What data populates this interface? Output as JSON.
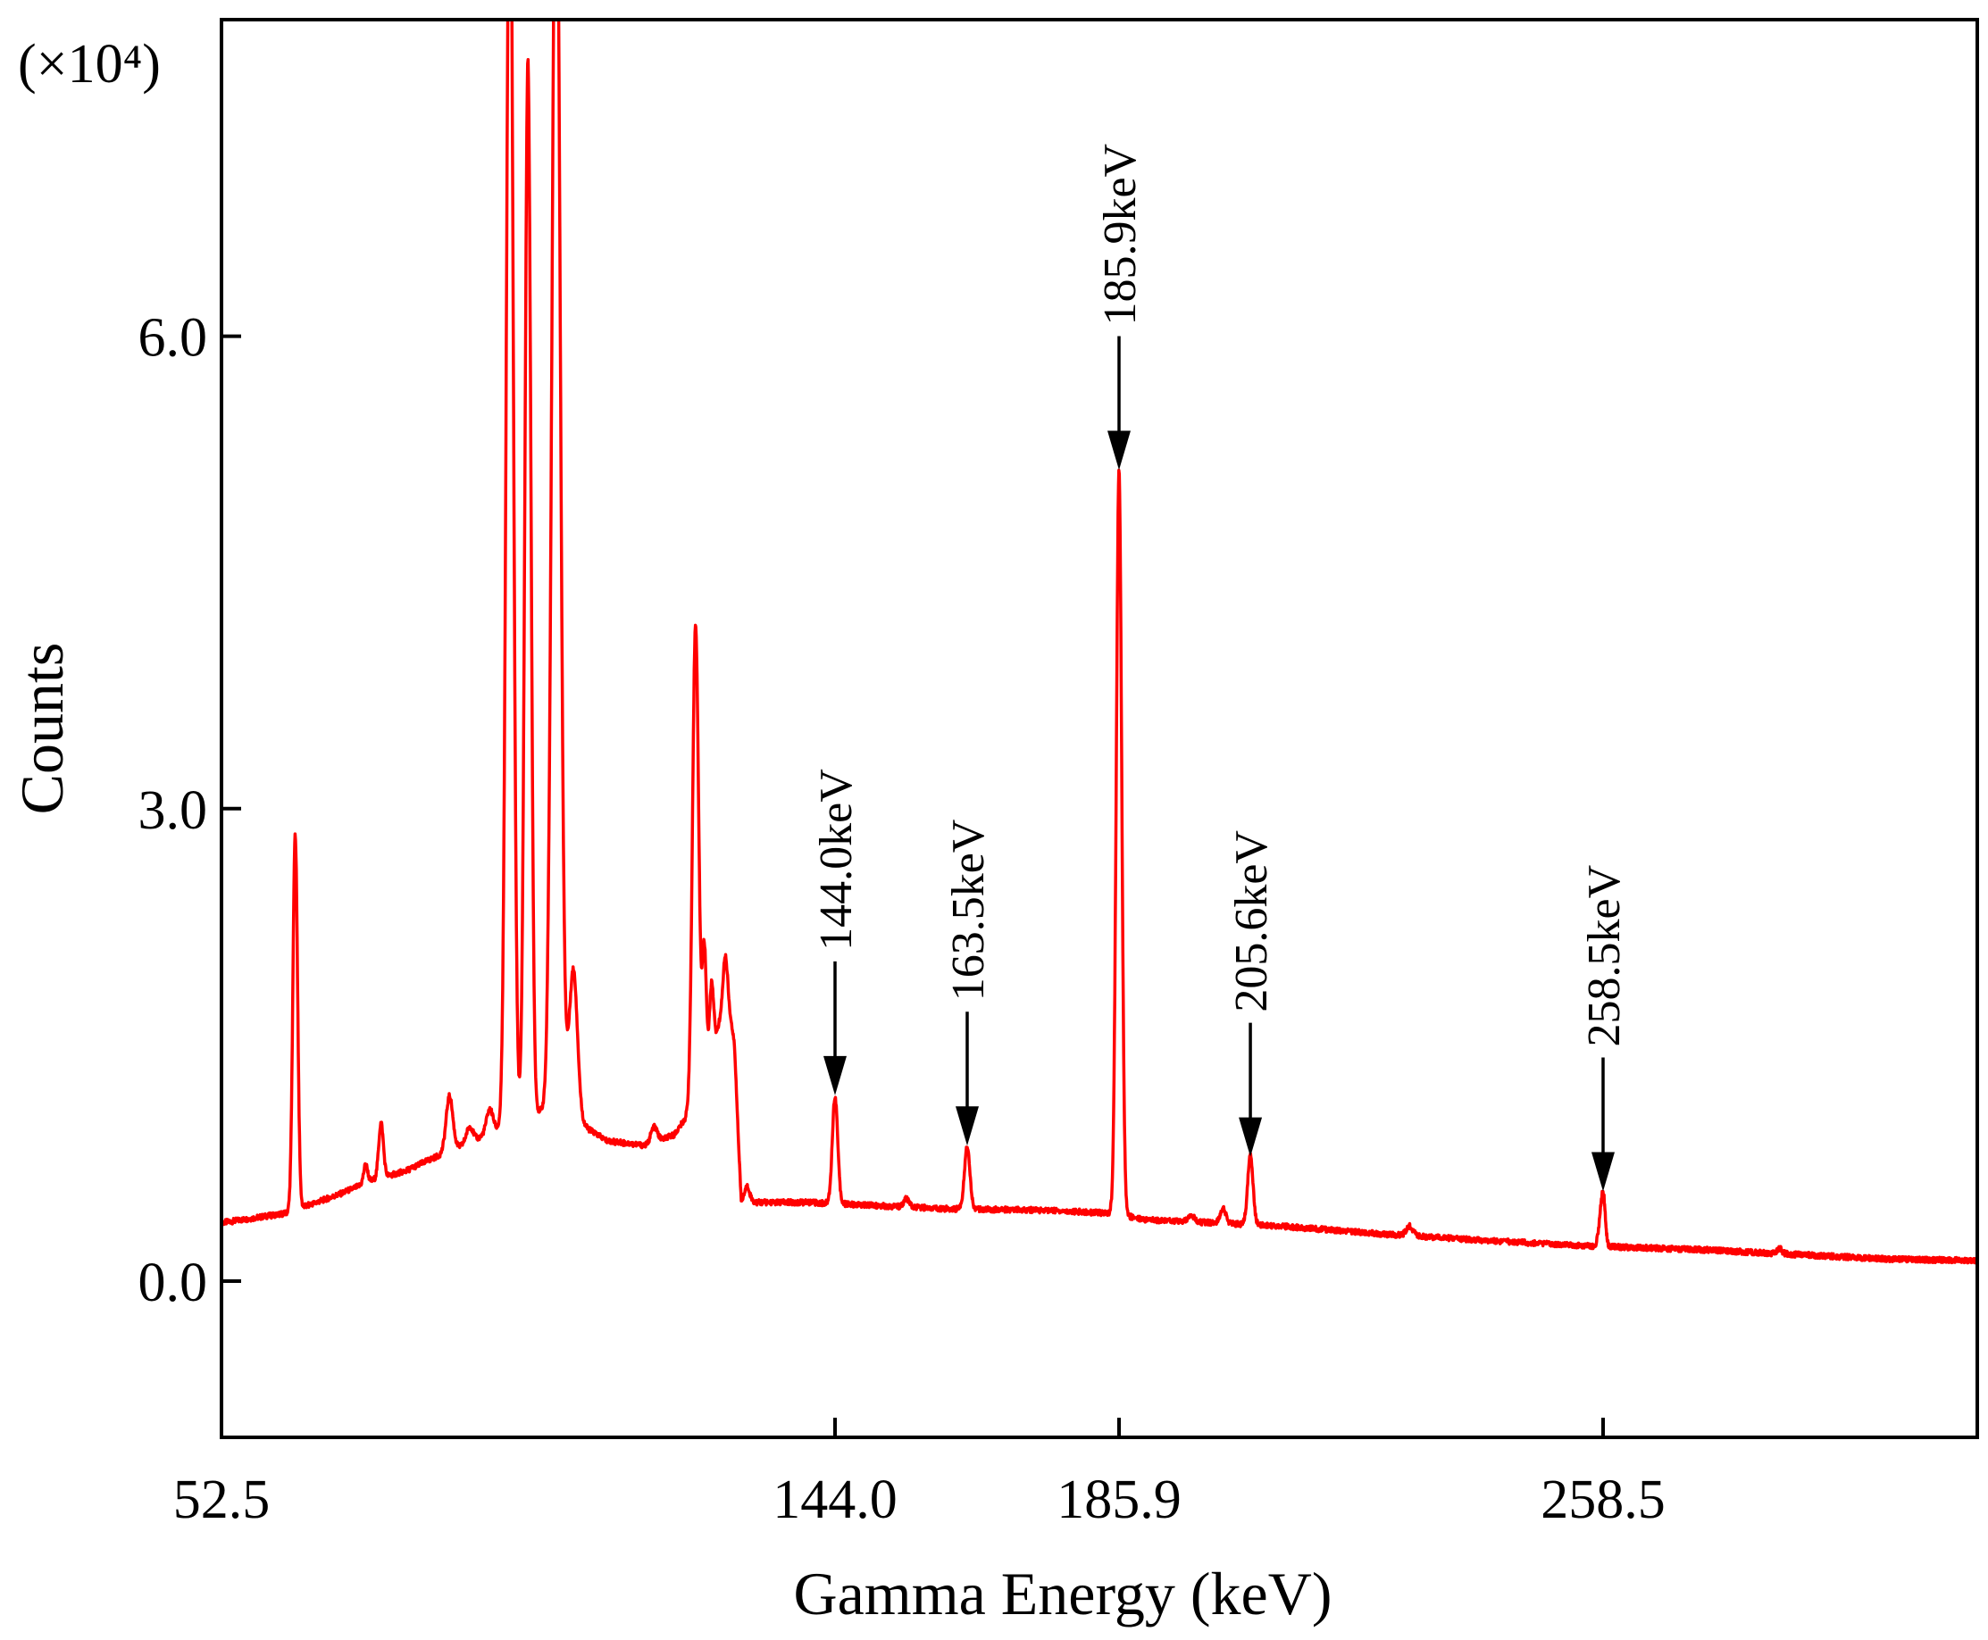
{
  "chart_data": {
    "type": "line",
    "title": "",
    "xlabel": "Gamma Energy (keV)",
    "ylabel": "Counts",
    "y_scale_label": "(×10⁴)",
    "xlim": [
      52.5,
      340
    ],
    "ylim": [
      -0.9,
      8.0
    ],
    "x_ticks": [
      52.5,
      144.0,
      185.9,
      258.5
    ],
    "x_tick_labels": [
      "52.5",
      "144.0",
      "185.9",
      "258.5"
    ],
    "y_ticks": [
      0.0,
      3.0,
      6.0
    ],
    "y_tick_labels": [
      "0.0",
      "3.0",
      "6.0"
    ],
    "grid": false,
    "legend": "none",
    "annotations": [
      {
        "label": "144.0keV",
        "x": 144.0,
        "y": 1.18
      },
      {
        "label": "163.5keV",
        "x": 163.5,
        "y": 0.86
      },
      {
        "label": "185.9keV",
        "x": 185.9,
        "y": 5.15
      },
      {
        "label": "205.6keV",
        "x": 205.6,
        "y": 0.79
      },
      {
        "label": "258.5keV",
        "x": 258.5,
        "y": 0.57
      }
    ],
    "series": [
      {
        "color": "#ff0000",
        "baseline": [
          [
            52.5,
            0.37
          ],
          [
            62,
            0.43
          ],
          [
            64,
            0.46
          ],
          [
            70,
            0.55
          ],
          [
            75,
            0.64
          ],
          [
            80,
            0.7
          ],
          [
            84,
            0.78
          ],
          [
            89,
            0.87
          ],
          [
            94,
            0.97
          ],
          [
            99,
            1.06
          ],
          [
            102,
            1.12
          ],
          [
            104,
            1.16
          ],
          [
            106,
            1.0
          ],
          [
            110,
            0.89
          ],
          [
            116,
            0.86
          ],
          [
            120,
            0.93
          ],
          [
            122,
            1.05
          ],
          [
            124,
            1.25
          ],
          [
            126,
            1.5
          ],
          [
            127,
            1.7
          ],
          [
            128,
            1.8
          ],
          [
            129,
            1.5
          ],
          [
            130,
            0.5
          ],
          [
            140,
            0.5
          ],
          [
            160,
            0.46
          ],
          [
            175,
            0.45
          ],
          [
            185,
            0.43
          ],
          [
            190,
            0.39
          ],
          [
            200,
            0.37
          ],
          [
            210,
            0.35
          ],
          [
            225,
            0.3
          ],
          [
            240,
            0.26
          ],
          [
            258,
            0.22
          ],
          [
            280,
            0.2
          ],
          [
            300,
            0.17
          ],
          [
            320,
            0.14
          ],
          [
            340,
            0.13
          ]
        ],
        "peaks": [
          {
            "x": 63.5,
            "height": 2.38,
            "width": 0.35
          },
          {
            "x": 74.0,
            "height": 0.12,
            "width": 0.3
          },
          {
            "x": 76.3,
            "height": 0.35,
            "width": 0.35
          },
          {
            "x": 86.5,
            "height": 0.35,
            "width": 0.5
          },
          {
            "x": 89.5,
            "height": 0.1,
            "width": 0.5
          },
          {
            "x": 92.5,
            "height": 0.15,
            "width": 0.5
          },
          {
            "x": 95.5,
            "height": 8.5,
            "width": 0.5
          },
          {
            "x": 98.2,
            "height": 6.7,
            "width": 0.45
          },
          {
            "x": 102.4,
            "height": 8.5,
            "width": 0.6
          },
          {
            "x": 105.0,
            "height": 0.9,
            "width": 0.6
          },
          {
            "x": 117.0,
            "height": 0.1,
            "width": 0.5
          },
          {
            "x": 123.2,
            "height": 3.0,
            "width": 0.45
          },
          {
            "x": 124.5,
            "height": 0.8,
            "width": 0.3
          },
          {
            "x": 125.6,
            "height": 0.45,
            "width": 0.3
          },
          {
            "x": 127.6,
            "height": 0.3,
            "width": 0.3
          },
          {
            "x": 130.9,
            "height": 0.1,
            "width": 0.4
          },
          {
            "x": 144.0,
            "height": 0.68,
            "width": 0.4
          },
          {
            "x": 154.5,
            "height": 0.05,
            "width": 0.4
          },
          {
            "x": 163.5,
            "height": 0.4,
            "width": 0.4
          },
          {
            "x": 185.9,
            "height": 4.72,
            "width": 0.4
          },
          {
            "x": 196.7,
            "height": 0.05,
            "width": 0.4
          },
          {
            "x": 201.5,
            "height": 0.1,
            "width": 0.4
          },
          {
            "x": 205.6,
            "height": 0.44,
            "width": 0.4
          },
          {
            "x": 229.5,
            "height": 0.06,
            "width": 0.5
          },
          {
            "x": 258.5,
            "height": 0.35,
            "width": 0.45
          },
          {
            "x": 297.0,
            "height": 0.03,
            "width": 0.5
          }
        ]
      }
    ]
  }
}
